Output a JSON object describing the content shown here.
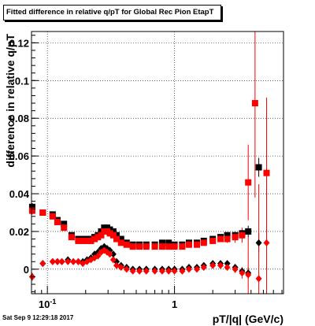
{
  "title": "Fitted difference in relative q/pT for Global Rec Pion EtapT",
  "timestamp": "Sat Sep  9 12:29:18 2017",
  "chart_data": {
    "type": "scatter",
    "title": "Fitted difference in relative q/pT for Global Rec Pion EtapT",
    "xlabel": "pT/|q| (GeV/c)",
    "ylabel": "difference in relative q/pT",
    "xscale": "log",
    "xlim": [
      0.075,
      7.2
    ],
    "ylim": [
      -0.013,
      0.126
    ],
    "xticklabels": [
      {
        "x": 0.1,
        "label": "10",
        "exp": "-1"
      },
      {
        "x": 1,
        "label": "1",
        "exp": ""
      }
    ],
    "yticks": [
      0,
      0.02,
      0.04,
      0.06,
      0.08,
      0.1,
      0.12
    ],
    "yticklabels": [
      "0",
      "0.02",
      "0.04",
      "0.06",
      "0.08",
      "0.1",
      "0.12"
    ],
    "grid": true,
    "series": [
      {
        "marker": "square",
        "color": "#000000",
        "x": [
          0.076,
          0.092,
          0.11,
          0.12,
          0.135,
          0.155,
          0.175,
          0.19,
          0.205,
          0.22,
          0.235,
          0.25,
          0.265,
          0.28,
          0.295,
          0.31,
          0.33,
          0.35,
          0.38,
          0.42,
          0.47,
          0.53,
          0.6,
          0.7,
          0.8,
          0.9,
          1.0,
          1.15,
          1.3,
          1.5,
          1.7,
          2.0,
          2.3,
          2.6,
          3.0,
          3.4,
          3.8,
          4.6,
          5.3
        ],
        "y": [
          0.033,
          0.03,
          0.029,
          0.026,
          0.024,
          0.018,
          0.016,
          0.016,
          0.016,
          0.016,
          0.017,
          0.018,
          0.02,
          0.022,
          0.022,
          0.021,
          0.02,
          0.018,
          0.016,
          0.014,
          0.013,
          0.013,
          0.013,
          0.013,
          0.014,
          0.014,
          0.013,
          0.013,
          0.014,
          0.014,
          0.015,
          0.016,
          0.017,
          0.018,
          0.018,
          0.019,
          0.02,
          0.054,
          null
        ],
        "yerr": [
          0.002,
          0.001,
          0.001,
          0.001,
          0.001,
          0.001,
          0.001,
          0.001,
          0.001,
          0.001,
          0.001,
          0.001,
          0.001,
          0.001,
          0.001,
          0.001,
          0.001,
          0.001,
          0.001,
          0.001,
          0.001,
          0.001,
          0.001,
          0.001,
          0.001,
          0.001,
          0.001,
          0.001,
          0.001,
          0.001,
          0.001,
          0.001,
          0.001,
          0.001,
          0.001,
          0.002,
          0.003,
          0.005,
          null
        ]
      },
      {
        "marker": "square",
        "color": "#ff0000",
        "x": [
          0.076,
          0.092,
          0.11,
          0.12,
          0.135,
          0.155,
          0.175,
          0.19,
          0.205,
          0.22,
          0.235,
          0.25,
          0.265,
          0.28,
          0.295,
          0.31,
          0.33,
          0.35,
          0.38,
          0.42,
          0.47,
          0.53,
          0.6,
          0.7,
          0.8,
          0.9,
          1.0,
          1.15,
          1.3,
          1.5,
          1.7,
          2.0,
          2.3,
          2.6,
          3.0,
          3.4,
          3.8,
          4.3,
          5.3
        ],
        "y": [
          0.031,
          0.03,
          0.028,
          0.025,
          0.022,
          0.017,
          0.015,
          0.015,
          0.015,
          0.015,
          0.016,
          0.017,
          0.018,
          0.02,
          0.02,
          0.019,
          0.018,
          0.016,
          0.014,
          0.013,
          0.012,
          0.012,
          0.012,
          0.012,
          0.012,
          0.012,
          0.012,
          0.012,
          0.013,
          0.013,
          0.014,
          0.015,
          0.016,
          0.016,
          0.017,
          0.018,
          0.046,
          0.088,
          0.051
        ],
        "yerr": [
          0.002,
          0.001,
          0.001,
          0.001,
          0.001,
          0.001,
          0.001,
          0.001,
          0.001,
          0.001,
          0.001,
          0.001,
          0.001,
          0.001,
          0.001,
          0.001,
          0.001,
          0.001,
          0.001,
          0.001,
          0.001,
          0.001,
          0.001,
          0.001,
          0.001,
          0.001,
          0.001,
          0.001,
          0.001,
          0.001,
          0.001,
          0.001,
          0.001,
          0.002,
          0.003,
          0.004,
          0.02,
          0.05,
          0.04
        ]
      },
      {
        "marker": "diamond",
        "color": "#000000",
        "x": [
          0.076,
          0.092,
          0.11,
          0.12,
          0.13,
          0.145,
          0.16,
          0.175,
          0.19,
          0.205,
          0.22,
          0.235,
          0.25,
          0.265,
          0.28,
          0.295,
          0.31,
          0.33,
          0.35,
          0.38,
          0.42,
          0.47,
          0.53,
          0.6,
          0.7,
          0.8,
          0.9,
          1.0,
          1.15,
          1.3,
          1.5,
          1.7,
          2.0,
          2.3,
          2.6,
          3.0,
          3.4,
          3.8,
          4.6,
          5.3
        ],
        "y": [
          -0.004,
          0.003,
          0.004,
          0.004,
          0.004,
          0.005,
          0.004,
          0.004,
          0.004,
          0.005,
          0.006,
          0.008,
          0.009,
          0.011,
          0.012,
          0.011,
          0.01,
          0.008,
          0.004,
          0.002,
          0.001,
          0.0,
          0.0,
          0.0,
          0.0,
          0.0,
          0.0,
          0.0,
          0.0,
          0.001,
          0.001,
          0.002,
          0.003,
          0.003,
          0.003,
          0.001,
          -0.001,
          -0.002,
          0.014,
          null
        ],
        "yerr": [
          0.002,
          0.001,
          0.001,
          0.001,
          0.001,
          0.001,
          0.001,
          0.001,
          0.001,
          0.001,
          0.001,
          0.001,
          0.001,
          0.001,
          0.001,
          0.001,
          0.001,
          0.001,
          0.001,
          0.001,
          0.001,
          0.001,
          0.001,
          0.001,
          0.001,
          0.001,
          0.001,
          0.001,
          0.001,
          0.001,
          0.001,
          0.001,
          0.001,
          0.001,
          0.001,
          0.001,
          0.002,
          0.003,
          0.005,
          null
        ]
      },
      {
        "marker": "diamond",
        "color": "#ff0000",
        "x": [
          0.076,
          0.092,
          0.11,
          0.12,
          0.13,
          0.145,
          0.16,
          0.175,
          0.19,
          0.205,
          0.22,
          0.235,
          0.25,
          0.265,
          0.28,
          0.295,
          0.31,
          0.33,
          0.35,
          0.38,
          0.42,
          0.47,
          0.53,
          0.6,
          0.7,
          0.8,
          0.9,
          1.0,
          1.15,
          1.3,
          1.5,
          1.7,
          2.0,
          2.3,
          2.6,
          3.0,
          3.4,
          3.8,
          4.6,
          5.3
        ],
        "y": [
          -0.004,
          0.003,
          0.004,
          0.004,
          0.004,
          0.004,
          0.004,
          0.004,
          0.003,
          0.004,
          0.005,
          0.006,
          0.007,
          0.009,
          0.01,
          0.009,
          0.008,
          0.005,
          0.002,
          0.001,
          0.0,
          -0.001,
          -0.001,
          -0.001,
          -0.001,
          -0.001,
          -0.001,
          -0.001,
          -0.001,
          0.0,
          0.0,
          0.001,
          0.002,
          0.002,
          0.001,
          0.0,
          -0.002,
          -0.003,
          -0.005,
          0.014
        ],
        "yerr": [
          0.002,
          0.001,
          0.001,
          0.001,
          0.001,
          0.001,
          0.001,
          0.001,
          0.001,
          0.001,
          0.001,
          0.001,
          0.001,
          0.001,
          0.001,
          0.001,
          0.001,
          0.001,
          0.001,
          0.001,
          0.001,
          0.001,
          0.001,
          0.001,
          0.001,
          0.001,
          0.001,
          0.001,
          0.001,
          0.001,
          0.001,
          0.001,
          0.001,
          0.001,
          0.001,
          0.002,
          0.003,
          0.02,
          0.05,
          0.04
        ]
      }
    ]
  }
}
